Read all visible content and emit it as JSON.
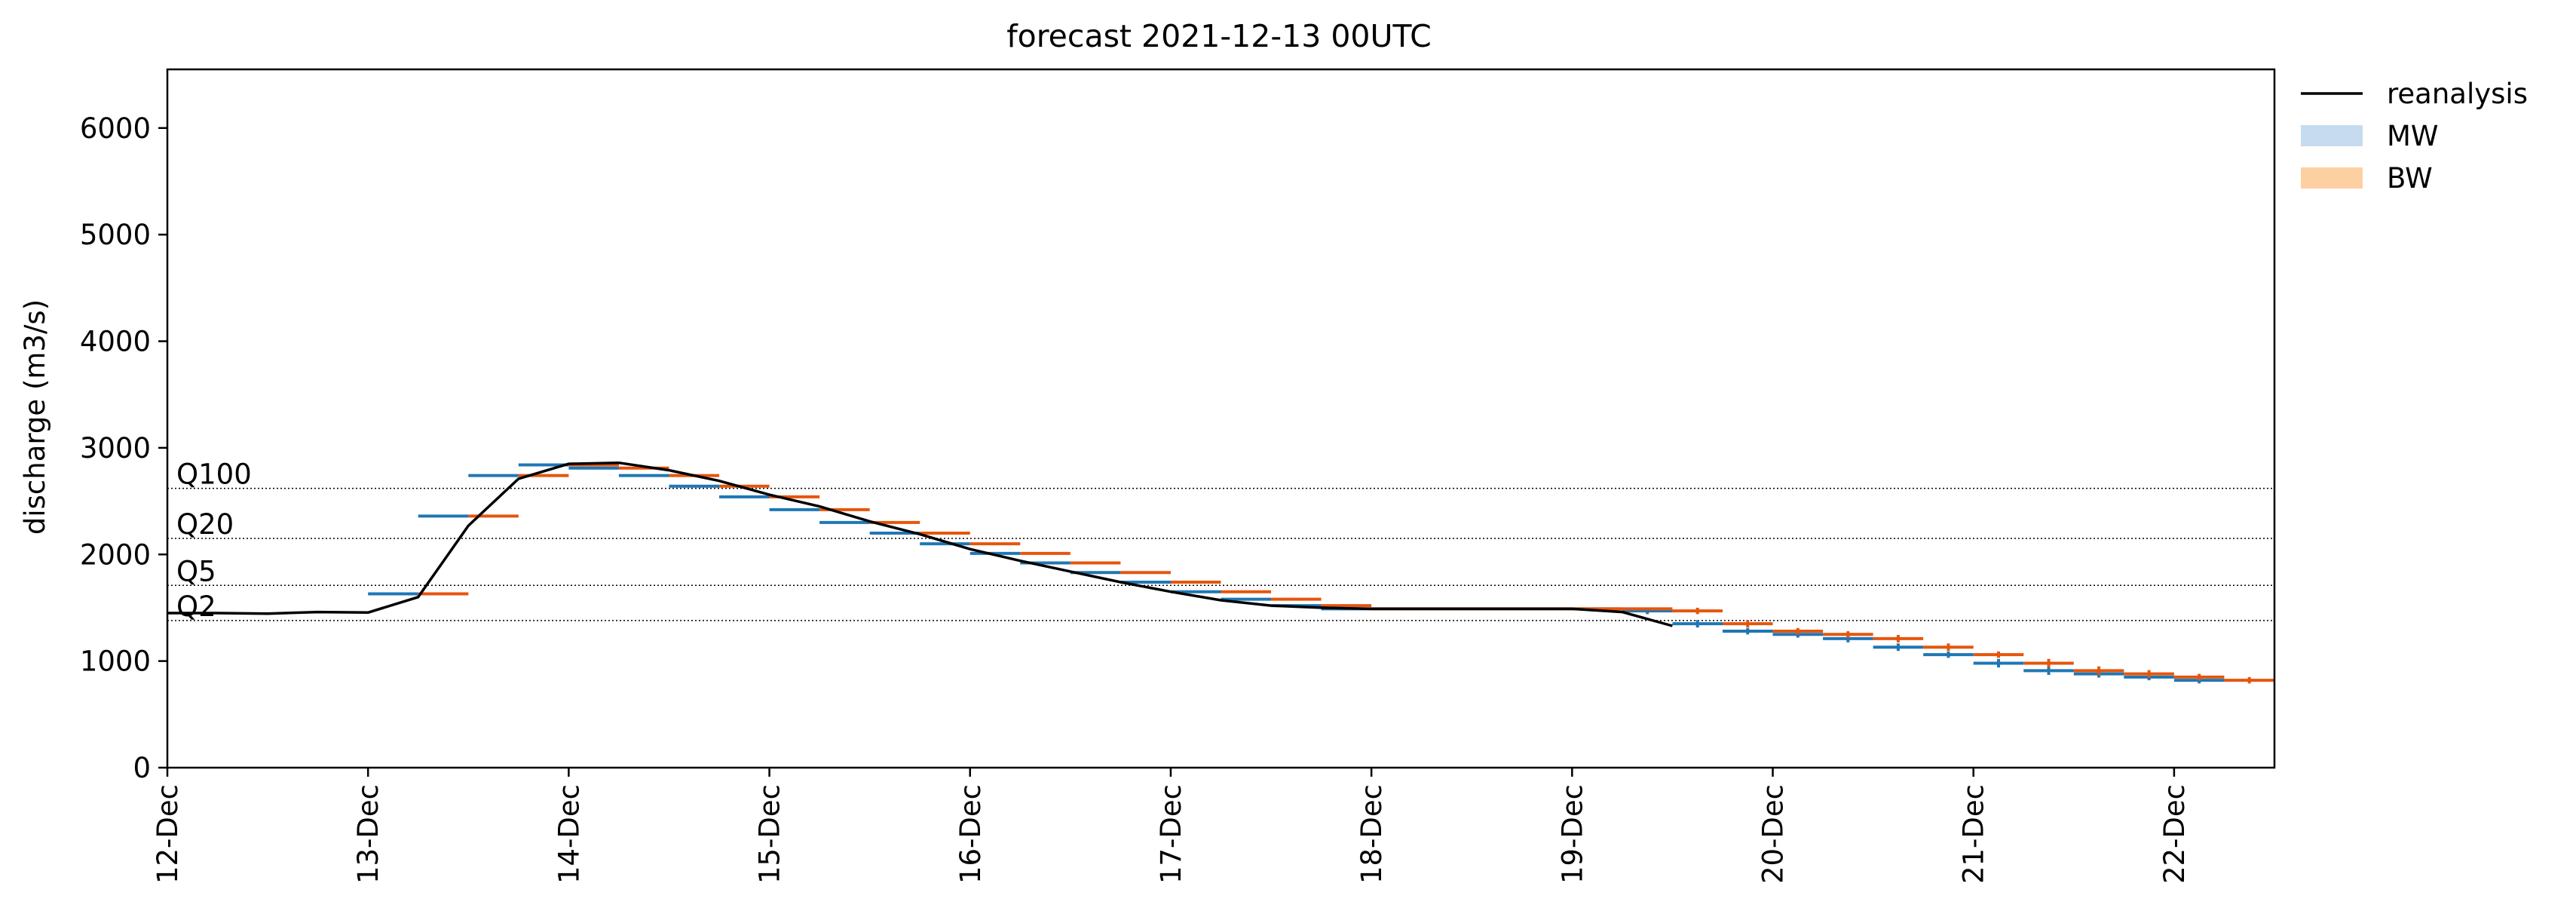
{
  "chart_data": {
    "type": "line",
    "title": "forecast 2021-12-13 00UTC",
    "ylabel": "discharge (m3/s)",
    "xlabel": "",
    "xlim": [
      "2021-12-12 00:00",
      "2021-12-22 12:00"
    ],
    "ylim": [
      0,
      6550
    ],
    "yticks": [
      0,
      1000,
      2000,
      3000,
      4000,
      5000,
      6000
    ],
    "xticks": [
      "12-Dec",
      "13-Dec",
      "14-Dec",
      "15-Dec",
      "16-Dec",
      "17-Dec",
      "18-Dec",
      "19-Dec",
      "20-Dec",
      "21-Dec",
      "22-Dec"
    ],
    "xtick_dates": [
      "2021-12-12",
      "2021-12-13",
      "2021-12-14",
      "2021-12-15",
      "2021-12-16",
      "2021-12-17",
      "2021-12-18",
      "2021-12-19",
      "2021-12-20",
      "2021-12-21",
      "2021-12-22"
    ],
    "grid": false,
    "legend_position": "outside-right-top",
    "thresholds": [
      {
        "label": "Q100",
        "value": 2620
      },
      {
        "label": "Q20",
        "value": 2150
      },
      {
        "label": "Q5",
        "value": 1710
      },
      {
        "label": "Q2",
        "value": 1380
      }
    ],
    "reanalysis": {
      "name": "reanalysis",
      "color": "#000000",
      "x": [
        "2021-12-12 00:00",
        "2021-12-12 06:00",
        "2021-12-12 12:00",
        "2021-12-12 18:00",
        "2021-12-13 00:00",
        "2021-12-13 06:00",
        "2021-12-13 12:00",
        "2021-12-13 18:00",
        "2021-12-14 00:00",
        "2021-12-14 06:00",
        "2021-12-14 12:00",
        "2021-12-14 18:00",
        "2021-12-15 00:00",
        "2021-12-15 06:00",
        "2021-12-15 12:00",
        "2021-12-15 18:00",
        "2021-12-16 00:00",
        "2021-12-16 06:00",
        "2021-12-16 12:00",
        "2021-12-16 18:00",
        "2021-12-17 00:00",
        "2021-12-17 06:00",
        "2021-12-17 12:00",
        "2021-12-17 18:00",
        "2021-12-18 00:00",
        "2021-12-18 06:00",
        "2021-12-18 12:00",
        "2021-12-18 18:00",
        "2021-12-19 00:00",
        "2021-12-19 06:00",
        "2021-12-19 12:00"
      ],
      "y": [
        1450,
        1450,
        1445,
        1460,
        1455,
        1600,
        2270,
        2710,
        2850,
        2860,
        2790,
        2690,
        2560,
        2450,
        2310,
        2190,
        2050,
        1940,
        1840,
        1740,
        1650,
        1570,
        1520,
        1500,
        1490,
        1490,
        1490,
        1490,
        1490,
        1460,
        1330
      ]
    },
    "series": [
      {
        "name": "MW",
        "legend_color": "#c6dbef",
        "marker_color": "#1f77b4",
        "x": [
          "2021-12-13 06:00",
          "2021-12-13 12:00",
          "2021-12-13 18:00",
          "2021-12-14 00:00",
          "2021-12-14 06:00",
          "2021-12-14 12:00",
          "2021-12-14 18:00",
          "2021-12-15 00:00",
          "2021-12-15 06:00",
          "2021-12-15 12:00",
          "2021-12-15 18:00",
          "2021-12-16 00:00",
          "2021-12-16 06:00",
          "2021-12-16 12:00",
          "2021-12-16 18:00",
          "2021-12-17 00:00",
          "2021-12-17 06:00",
          "2021-12-17 12:00",
          "2021-12-17 18:00",
          "2021-12-18 00:00",
          "2021-12-18 06:00",
          "2021-12-18 12:00",
          "2021-12-18 18:00",
          "2021-12-19 00:00",
          "2021-12-19 06:00",
          "2021-12-19 12:00",
          "2021-12-19 18:00",
          "2021-12-20 00:00",
          "2021-12-20 06:00",
          "2021-12-20 12:00",
          "2021-12-20 18:00",
          "2021-12-21 00:00",
          "2021-12-21 06:00",
          "2021-12-21 12:00",
          "2021-12-21 18:00",
          "2021-12-22 00:00",
          "2021-12-22 06:00"
        ],
        "values": [
          1630,
          2360,
          2740,
          2840,
          2810,
          2740,
          2640,
          2540,
          2420,
          2300,
          2200,
          2100,
          2010,
          1920,
          1830,
          1740,
          1650,
          1580,
          1520,
          1490,
          1490,
          1490,
          1490,
          1490,
          1490,
          1470,
          1350,
          1280,
          1250,
          1210,
          1130,
          1060,
          980,
          910,
          880,
          850,
          820
        ],
        "spread": [
          0,
          0,
          0,
          0,
          0,
          0,
          0,
          0,
          0,
          0,
          0,
          0,
          0,
          0,
          0,
          0,
          0,
          0,
          0,
          0,
          0,
          0,
          0,
          0,
          0,
          30,
          35,
          30,
          30,
          35,
          35,
          30,
          40,
          40,
          35,
          30,
          30
        ]
      },
      {
        "name": "BW",
        "legend_color": "#fdd0a2",
        "marker_color": "#e6550d",
        "x": [
          "2021-12-13 06:00",
          "2021-12-13 12:00",
          "2021-12-13 18:00",
          "2021-12-14 00:00",
          "2021-12-14 06:00",
          "2021-12-14 12:00",
          "2021-12-14 18:00",
          "2021-12-15 00:00",
          "2021-12-15 06:00",
          "2021-12-15 12:00",
          "2021-12-15 18:00",
          "2021-12-16 00:00",
          "2021-12-16 06:00",
          "2021-12-16 12:00",
          "2021-12-16 18:00",
          "2021-12-17 00:00",
          "2021-12-17 06:00",
          "2021-12-17 12:00",
          "2021-12-17 18:00",
          "2021-12-18 00:00",
          "2021-12-18 06:00",
          "2021-12-18 12:00",
          "2021-12-18 18:00",
          "2021-12-19 00:00",
          "2021-12-19 06:00",
          "2021-12-19 12:00",
          "2021-12-19 18:00",
          "2021-12-20 00:00",
          "2021-12-20 06:00",
          "2021-12-20 12:00",
          "2021-12-20 18:00",
          "2021-12-21 00:00",
          "2021-12-21 06:00",
          "2021-12-21 12:00",
          "2021-12-21 18:00",
          "2021-12-22 00:00",
          "2021-12-22 06:00"
        ],
        "values": [
          1630,
          2360,
          2740,
          2840,
          2810,
          2740,
          2640,
          2540,
          2420,
          2300,
          2200,
          2100,
          2010,
          1920,
          1830,
          1740,
          1650,
          1580,
          1520,
          1490,
          1490,
          1490,
          1490,
          1490,
          1490,
          1470,
          1350,
          1280,
          1250,
          1210,
          1130,
          1060,
          980,
          910,
          880,
          850,
          820
        ],
        "spread": [
          0,
          0,
          0,
          0,
          0,
          0,
          0,
          0,
          0,
          0,
          0,
          0,
          0,
          0,
          0,
          0,
          0,
          0,
          0,
          0,
          0,
          0,
          0,
          0,
          0,
          30,
          35,
          30,
          30,
          35,
          35,
          30,
          40,
          40,
          35,
          30,
          30
        ]
      }
    ]
  }
}
